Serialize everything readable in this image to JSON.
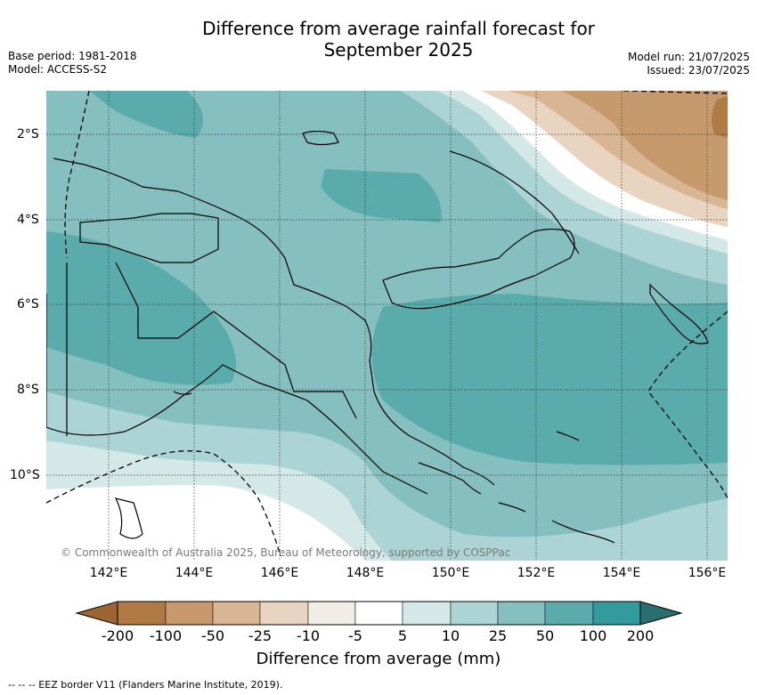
{
  "title_line1": "Difference from average rainfall forecast for",
  "title_line2": "September 2025",
  "base_period": "Base period: 1981-2018",
  "model": "Model: ACCESS-S2",
  "model_run": "Model run: 21/07/2025",
  "issued": "Issued: 23/07/2025",
  "lon_labels": [
    "142°E",
    "144°E",
    "146°E",
    "148°E",
    "150°E",
    "152°E",
    "154°E",
    "156°E"
  ],
  "lat_labels": [
    "2°S",
    "4°S",
    "6°S",
    "8°S",
    "10°S"
  ],
  "copyright": "© Commonwealth of Australia 2025, Bureau of Meteorology, supported by COSPPac",
  "colorbar": {
    "ticks": [
      "-200",
      "-100",
      "-50",
      "-25",
      "-10",
      "-5",
      "5",
      "10",
      "25",
      "50",
      "100",
      "200"
    ],
    "colors": [
      "#9b6430",
      "#b07a44",
      "#c79a6d",
      "#d8b593",
      "#e8d4c0",
      "#f0ece6",
      "#ffffff",
      "#d5e8e8",
      "#acd4d4",
      "#86bfbf",
      "#5aabab",
      "#339b9b",
      "#2a6f6f"
    ],
    "title": "Difference from average (mm)"
  },
  "footnote": "--  --  -- EEZ border V11 (Flanders Marine Institute, 2019)."
}
